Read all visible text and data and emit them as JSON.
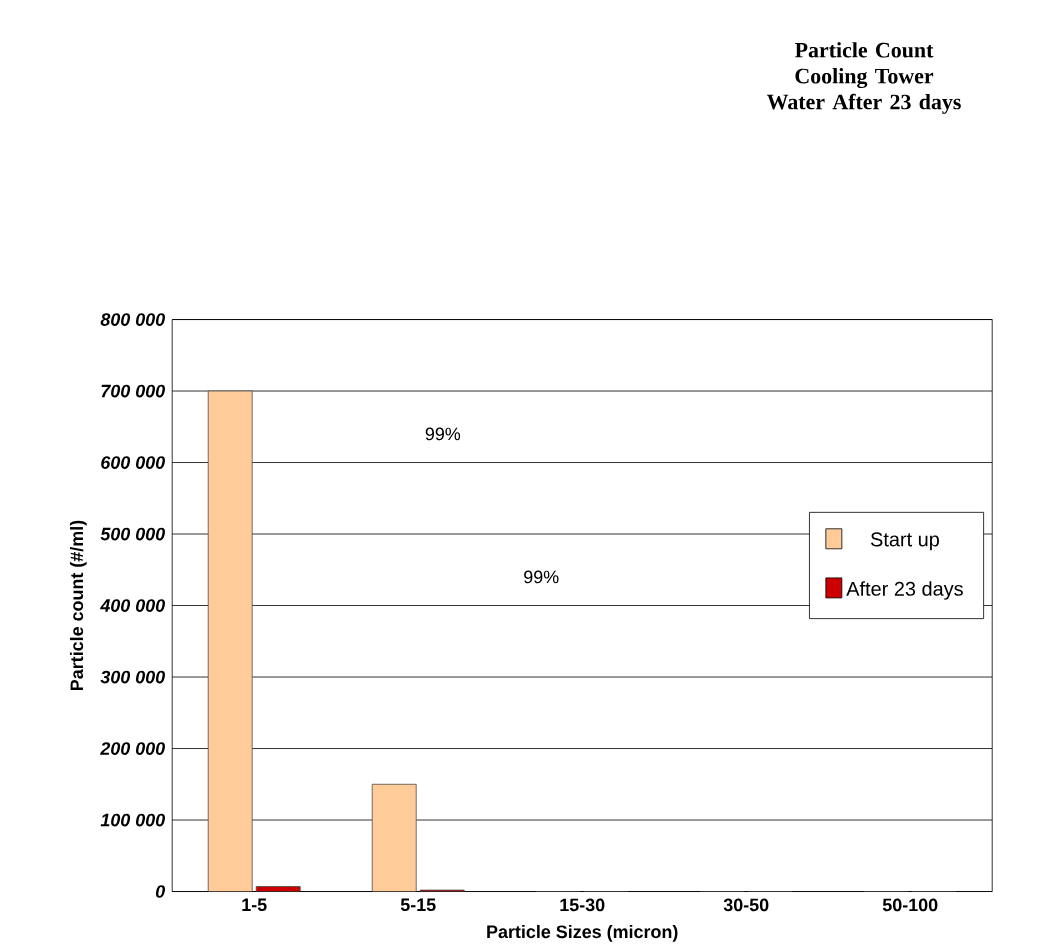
{
  "chart_data": {
    "type": "bar",
    "title": "Particle Count Cooling Tower Water After 23 days",
    "xlabel": "Particle Sizes (micron)",
    "ylabel": "Particle count (#/ml)",
    "categories": [
      "1-5",
      "5-15",
      "15-30",
      "30-50",
      "50-100"
    ],
    "series": [
      {
        "name": "Start up",
        "color": "#ffcc99",
        "values": [
          700000,
          150000,
          0,
          0,
          0
        ]
      },
      {
        "name": "After 23 days",
        "color": "#cc0000",
        "values": [
          7000,
          2000,
          0,
          0,
          0
        ]
      }
    ],
    "annotations": [
      "99%",
      "99%"
    ],
    "ylim": [
      0,
      800000
    ],
    "yticks": [
      {
        "value": 0,
        "label": "0"
      },
      {
        "value": 100000,
        "label": "100 000"
      },
      {
        "value": 200000,
        "label": "200 000"
      },
      {
        "value": 300000,
        "label": "300 000"
      },
      {
        "value": 400000,
        "label": "400 000"
      },
      {
        "value": 500000,
        "label": "500 000"
      },
      {
        "value": 600000,
        "label": "600 000"
      },
      {
        "value": 700000,
        "label": "700 000"
      },
      {
        "value": 800000,
        "label": "800 000"
      }
    ],
    "grid": "y",
    "legend": "right"
  }
}
